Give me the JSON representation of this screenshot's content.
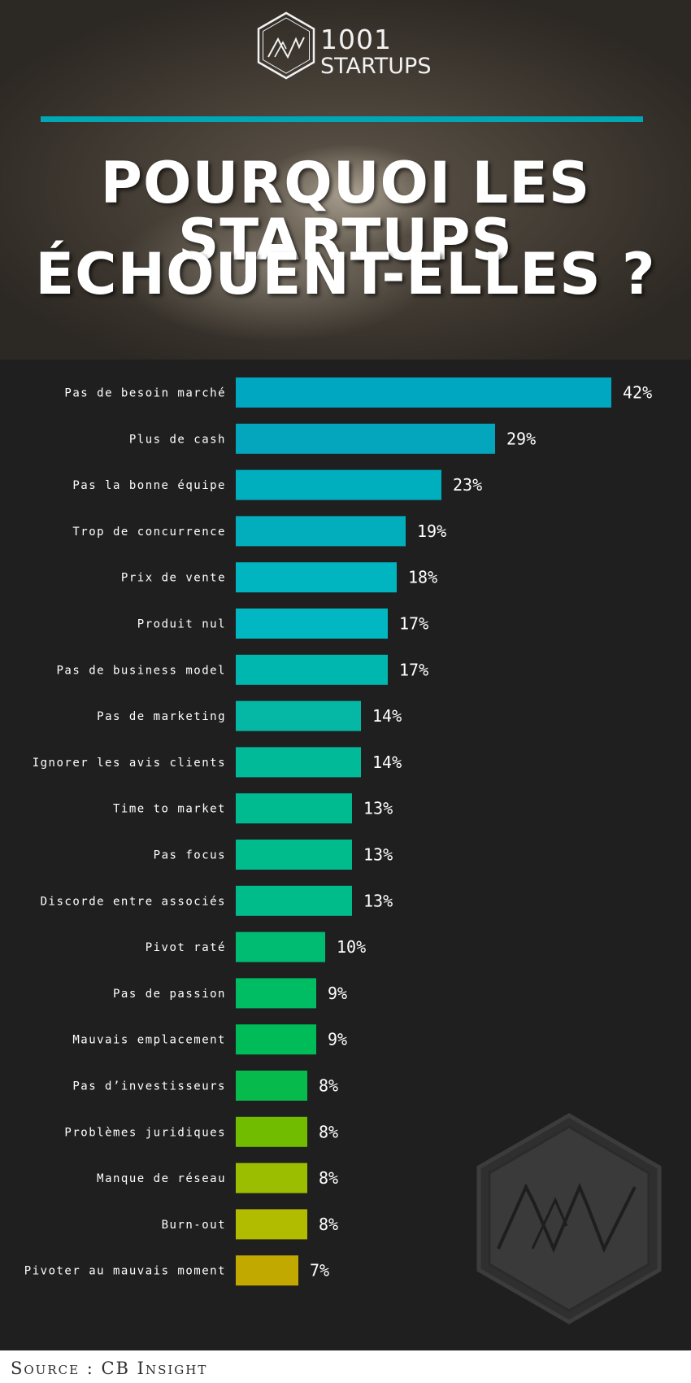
{
  "brand": {
    "number": "1001",
    "word": "STARTUPS",
    "accent_color": "#00a8b5"
  },
  "title": {
    "line1": "POURQUOI LES STARTUPS",
    "line2": "ÉCHOUENT-ELLES ?"
  },
  "chart_data": {
    "type": "bar",
    "orientation": "horizontal",
    "categories": [
      "Pas de besoin marché",
      "Plus de cash",
      "Pas la bonne équipe",
      "Trop de concurrence",
      "Prix de vente",
      "Produit nul",
      "Pas de business model",
      "Pas de marketing",
      "Ignorer les avis clients",
      "Time to market",
      "Pas focus",
      "Discorde entre associés",
      "Pivot raté",
      "Pas de passion",
      "Mauvais emplacement",
      "Pas d’investisseurs",
      "Problèmes juridiques",
      "Manque de réseau",
      "Burn-out",
      "Pivoter au mauvais moment"
    ],
    "values": [
      42,
      29,
      23,
      19,
      18,
      17,
      17,
      14,
      14,
      13,
      13,
      13,
      10,
      9,
      9,
      8,
      8,
      8,
      8,
      7
    ],
    "value_labels": [
      "42%",
      "29%",
      "23%",
      "19%",
      "18%",
      "17%",
      "17%",
      "14%",
      "14%",
      "13%",
      "13%",
      "13%",
      "10%",
      "9%",
      "9%",
      "8%",
      "8%",
      "8%",
      "8%",
      "7%"
    ],
    "colors": [
      "#00a7c0",
      "#03a6bc",
      "#00afbe",
      "#02aebb",
      "#00b4c0",
      "#00b7c2",
      "#00b7b0",
      "#05b8a6",
      "#01bb98",
      "#00bb90",
      "#00bc8d",
      "#00bc8a",
      "#00bc72",
      "#00bd64",
      "#00bc58",
      "#06bb4c",
      "#72bc00",
      "#9bbf00",
      "#b1bc00",
      "#c2a900"
    ],
    "title": "",
    "xlabel": "",
    "ylabel": "",
    "grid": false,
    "legend": "none"
  },
  "footer": {
    "source": "Source : CB Insight"
  }
}
